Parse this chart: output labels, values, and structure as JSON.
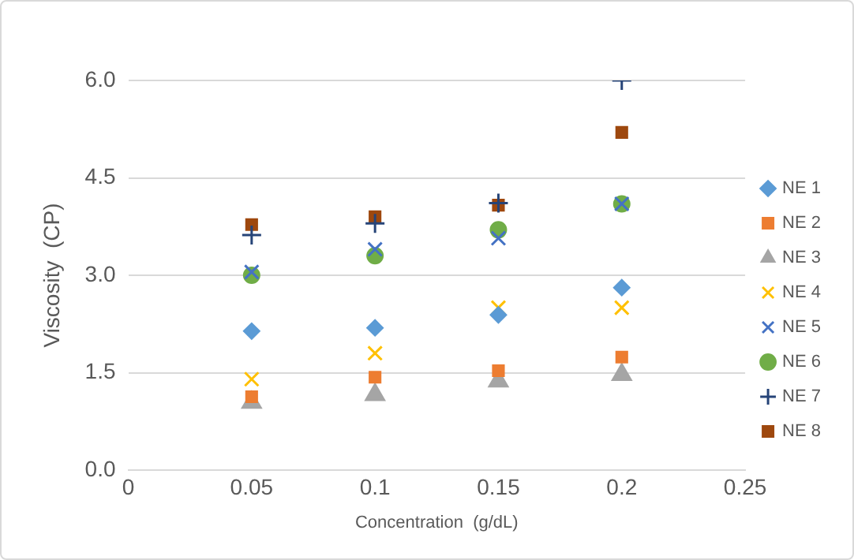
{
  "chart_data": {
    "type": "scatter",
    "xlabel": "Concentration  (g/dL)",
    "ylabel": "Viscosity  (CP)",
    "x": [
      0.05,
      0.1,
      0.15,
      0.2
    ],
    "series": [
      {
        "name": "NE 1",
        "color": "#5b9bd5",
        "marker": "diamond",
        "values": [
          2.14,
          2.19,
          2.39,
          2.81
        ]
      },
      {
        "name": "NE 2",
        "color": "#ed7d31",
        "marker": "square",
        "values": [
          1.13,
          1.43,
          1.53,
          1.74
        ]
      },
      {
        "name": "NE 3",
        "color": "#a5a5a5",
        "marker": "triangle",
        "values": [
          1.04,
          1.16,
          1.37,
          1.47
        ]
      },
      {
        "name": "NE 4",
        "color": "#ffc000",
        "marker": "cross",
        "values": [
          1.4,
          1.8,
          2.5,
          2.5
        ]
      },
      {
        "name": "NE 5",
        "color": "#4472c4",
        "marker": "cross",
        "values": [
          3.05,
          3.4,
          3.57,
          4.1
        ]
      },
      {
        "name": "NE 6",
        "color": "#70ad47",
        "marker": "circle",
        "values": [
          3.0,
          3.3,
          3.7,
          4.1
        ]
      },
      {
        "name": "NE 7",
        "color": "#264478",
        "marker": "plus",
        "values": [
          3.62,
          3.8,
          4.11,
          6.0
        ]
      },
      {
        "name": "NE 8",
        "color": "#9e480e",
        "marker": "square",
        "values": [
          3.78,
          3.9,
          4.08,
          5.2
        ]
      }
    ],
    "xlim": [
      0,
      0.25
    ],
    "xticks": [
      0,
      0.05,
      0.1,
      0.15,
      0.2,
      0.25
    ],
    "ylim": [
      0,
      6
    ],
    "yticks": [
      {
        "value": 0,
        "label": "0.0"
      },
      {
        "value": 1.5,
        "label": "1.5"
      },
      {
        "value": 3,
        "label": "3.0"
      },
      {
        "value": 4.5,
        "label": "4.5"
      },
      {
        "value": 6,
        "label": "6.0"
      }
    ],
    "grid": "y",
    "legend": "right"
  }
}
